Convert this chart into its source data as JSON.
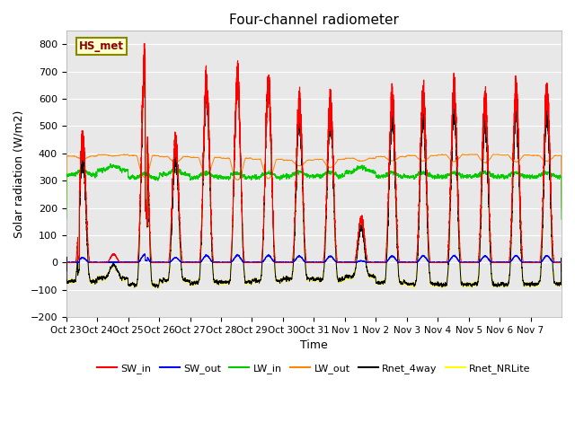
{
  "title": "Four-channel radiometer",
  "xlabel": "Time",
  "ylabel": "Solar radiation (W/m2)",
  "ylim": [
    -200,
    850
  ],
  "yticks": [
    -200,
    -100,
    0,
    100,
    200,
    300,
    400,
    500,
    600,
    700,
    800
  ],
  "n_days": 16,
  "x_tick_labels": [
    "Oct 23",
    "Oct 24",
    "Oct 25",
    "Oct 26",
    "Oct 27",
    "Oct 28",
    "Oct 29",
    "Oct 30",
    "Oct 31",
    "Nov 1",
    "Nov 2",
    "Nov 3",
    "Nov 4",
    "Nov 5",
    "Nov 6",
    "Nov 7"
  ],
  "colors": {
    "SW_in": "#ff0000",
    "SW_out": "#0000ff",
    "LW_in": "#00cc00",
    "LW_out": "#ff8800",
    "Rnet_4way": "#000000",
    "Rnet_NRLite": "#ffff00"
  },
  "legend_label": "HS_met",
  "background_color": "#e8e8e8",
  "linewidth": 0.7,
  "peaks_SW": [
    450,
    30,
    720,
    440,
    650,
    665,
    650,
    580,
    580,
    160,
    600,
    610,
    620,
    600,
    625,
    620
  ],
  "night_lw_out": [
    390,
    395,
    392,
    388,
    385,
    382,
    378,
    375,
    378,
    382,
    388,
    392,
    395,
    396,
    394,
    392
  ],
  "day_lw_out_drop": [
    10,
    5,
    80,
    20,
    60,
    80,
    70,
    20,
    30,
    10,
    15,
    20,
    25,
    30,
    25,
    20
  ]
}
